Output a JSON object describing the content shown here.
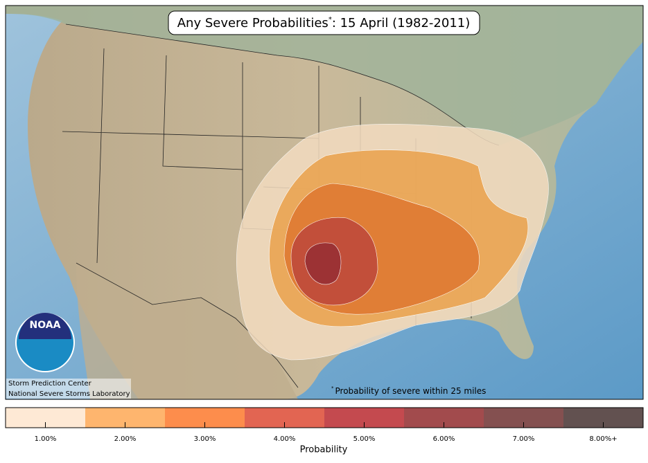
{
  "title": {
    "main": "Any Severe Probabilities",
    "marker": "*",
    "rest": ": 15 April (1982-2011)"
  },
  "footnote": {
    "marker": "*",
    "text": "Probability of severe within 25 miles"
  },
  "credits": [
    "Storm Prediction Center",
    "National Severe Storms Laboratory"
  ],
  "logo": "NOAA",
  "colorbar": {
    "label": "Probability",
    "levels": [
      {
        "label": "1.00%",
        "color": "#fee9d5"
      },
      {
        "label": "2.00%",
        "color": "#feb56e"
      },
      {
        "label": "3.00%",
        "color": "#fd8d4c"
      },
      {
        "label": "4.00%",
        "color": "#e26552"
      },
      {
        "label": "5.00%",
        "color": "#c44a4f"
      },
      {
        "label": "6.00%",
        "color": "#a24b4d"
      },
      {
        "label": "7.00%",
        "color": "#845050"
      },
      {
        "label": "8.00%+",
        "color": "#625150"
      }
    ]
  }
}
